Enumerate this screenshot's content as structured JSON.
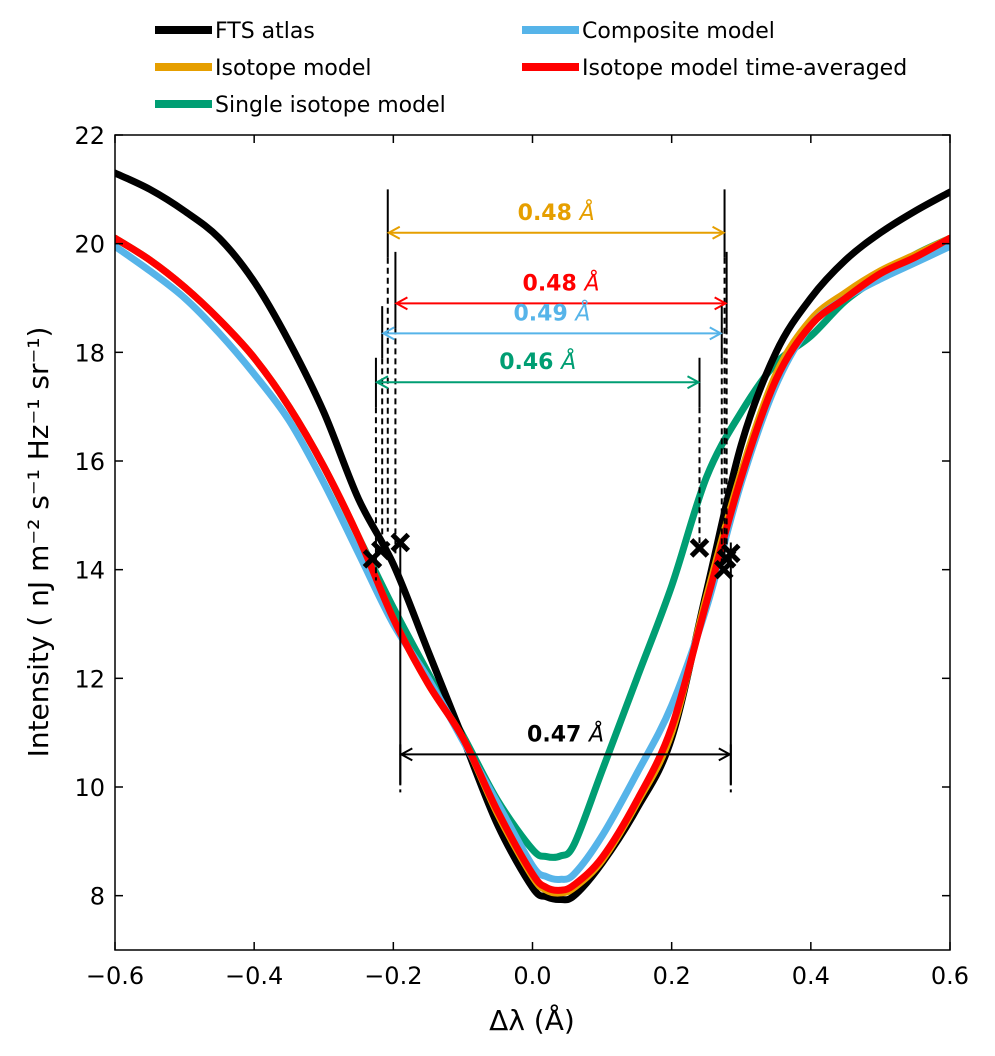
{
  "chart_data": {
    "type": "line",
    "xlabel": "Δλ (Å)",
    "ylabel": "Intensity ( nJ m⁻² s⁻¹ Hz⁻¹ sr⁻¹)",
    "xlim": [
      -0.6,
      0.6
    ],
    "ylim": [
      7,
      22
    ],
    "xticks": [
      -0.6,
      -0.4,
      -0.2,
      0.0,
      0.2,
      0.4,
      0.6
    ],
    "xtick_labels": [
      "−0.6",
      "−0.4",
      "−0.2",
      "0.0",
      "0.2",
      "0.4",
      "0.6"
    ],
    "yticks": [
      8,
      10,
      12,
      14,
      16,
      18,
      20,
      22
    ],
    "ytick_labels": [
      "8",
      "10",
      "12",
      "14",
      "16",
      "18",
      "20",
      "22"
    ],
    "legend": {
      "placement": "top",
      "entries": [
        {
          "label": "FTS atlas",
          "color": "#000000"
        },
        {
          "label": "Composite model",
          "color": "#56b4e9"
        },
        {
          "label": "Isotope model",
          "color": "#e69f00"
        },
        {
          "label": "Isotope model time-averaged",
          "color": "#ff0000"
        },
        {
          "label": "Single isotope model",
          "color": "#009e73"
        }
      ]
    },
    "series": [
      {
        "name": "FTS atlas",
        "color": "#000000",
        "x": [
          -0.6,
          -0.55,
          -0.5,
          -0.45,
          -0.4,
          -0.35,
          -0.3,
          -0.25,
          -0.2,
          -0.15,
          -0.1,
          -0.05,
          0.0,
          0.02,
          0.04,
          0.06,
          0.1,
          0.15,
          0.2,
          0.25,
          0.3,
          0.35,
          0.4,
          0.45,
          0.5,
          0.55,
          0.6
        ],
        "y": [
          21.3,
          21.0,
          20.6,
          20.1,
          19.3,
          18.2,
          16.9,
          15.3,
          14.1,
          12.5,
          10.9,
          9.3,
          8.15,
          7.98,
          7.93,
          8.0,
          8.6,
          9.6,
          10.9,
          13.6,
          16.3,
          18.0,
          19.0,
          19.7,
          20.2,
          20.6,
          20.95
        ]
      },
      {
        "name": "Isotope model",
        "color": "#e69f00",
        "x": [
          -0.6,
          -0.55,
          -0.5,
          -0.45,
          -0.4,
          -0.35,
          -0.3,
          -0.25,
          -0.2,
          -0.15,
          -0.1,
          -0.05,
          0.0,
          0.02,
          0.04,
          0.06,
          0.1,
          0.15,
          0.2,
          0.25,
          0.3,
          0.35,
          0.4,
          0.45,
          0.5,
          0.55,
          0.6
        ],
        "y": [
          20.1,
          19.7,
          19.2,
          18.6,
          17.9,
          17.0,
          15.9,
          14.6,
          13.1,
          11.9,
          10.9,
          9.5,
          8.35,
          8.1,
          8.05,
          8.15,
          8.65,
          9.7,
          11.0,
          13.5,
          15.8,
          17.6,
          18.6,
          19.1,
          19.5,
          19.8,
          20.1
        ]
      },
      {
        "name": "Isotope model time-averaged",
        "color": "#ff0000",
        "x": [
          -0.6,
          -0.55,
          -0.5,
          -0.45,
          -0.4,
          -0.35,
          -0.3,
          -0.25,
          -0.2,
          -0.15,
          -0.1,
          -0.05,
          0.0,
          0.02,
          0.04,
          0.06,
          0.1,
          0.15,
          0.2,
          0.25,
          0.3,
          0.35,
          0.4,
          0.45,
          0.5,
          0.55,
          0.6
        ],
        "y": [
          20.1,
          19.7,
          19.2,
          18.6,
          17.9,
          17.0,
          15.9,
          14.6,
          13.1,
          11.9,
          10.9,
          9.55,
          8.4,
          8.15,
          8.1,
          8.2,
          8.7,
          9.75,
          11.1,
          13.4,
          15.7,
          17.5,
          18.5,
          19.0,
          19.45,
          19.75,
          20.1
        ]
      },
      {
        "name": "Composite model",
        "color": "#56b4e9",
        "x": [
          -0.6,
          -0.55,
          -0.5,
          -0.45,
          -0.4,
          -0.35,
          -0.3,
          -0.25,
          -0.2,
          -0.15,
          -0.1,
          -0.05,
          0.0,
          0.02,
          0.04,
          0.06,
          0.1,
          0.15,
          0.2,
          0.25,
          0.3,
          0.35,
          0.4,
          0.45,
          0.5,
          0.55,
          0.6
        ],
        "y": [
          19.95,
          19.5,
          19.0,
          18.35,
          17.6,
          16.75,
          15.6,
          14.3,
          13.0,
          12.0,
          10.85,
          9.7,
          8.55,
          8.35,
          8.3,
          8.4,
          9.1,
          10.25,
          11.5,
          13.3,
          15.6,
          17.4,
          18.5,
          19.0,
          19.35,
          19.65,
          19.95
        ]
      },
      {
        "name": "Single isotope model",
        "color": "#009e73",
        "x": [
          -0.6,
          -0.55,
          -0.5,
          -0.45,
          -0.4,
          -0.35,
          -0.3,
          -0.25,
          -0.2,
          -0.15,
          -0.1,
          -0.05,
          0.0,
          0.02,
          0.04,
          0.06,
          0.1,
          0.15,
          0.2,
          0.25,
          0.3,
          0.35,
          0.4,
          0.45,
          0.5,
          0.55,
          0.6
        ],
        "y": [
          20.1,
          19.7,
          19.2,
          18.6,
          17.9,
          17.0,
          15.9,
          14.6,
          13.3,
          12.1,
          10.95,
          9.75,
          8.85,
          8.72,
          8.73,
          8.95,
          10.3,
          12.0,
          13.7,
          15.7,
          16.9,
          17.8,
          18.3,
          18.95,
          19.4,
          19.8,
          20.1
        ]
      }
    ],
    "width_annotations": [
      {
        "label": "0.48 Å",
        "value_text": "0.48",
        "unit": "Å",
        "color": "#e69f00",
        "x_left": -0.208,
        "x_right": 0.276,
        "arrow_y": 20.2,
        "left_top": 21.0,
        "right_top": 21.0,
        "left_bottom": 14.7,
        "right_bottom": 14.0
      },
      {
        "label": "0.48 Å",
        "value_text": "0.48",
        "unit": "Å",
        "color": "#ff0000",
        "x_left": -0.197,
        "x_right": 0.279,
        "arrow_y": 18.9,
        "left_top": 19.85,
        "right_top": 19.85,
        "left_bottom": 14.3,
        "right_bottom": 14.4
      },
      {
        "label": "0.49 Å",
        "value_text": "0.49",
        "unit": "Å",
        "color": "#56b4e9",
        "x_left": -0.216,
        "x_right": 0.272,
        "arrow_y": 18.35,
        "left_top": 18.85,
        "right_top": 18.85,
        "left_bottom": 14.4,
        "right_bottom": 14.1
      },
      {
        "label": "0.46 Å",
        "value_text": "0.46",
        "unit": "Å",
        "color": "#009e73",
        "x_left": -0.225,
        "x_right": 0.24,
        "arrow_y": 17.45,
        "left_top": 17.9,
        "right_top": 17.9,
        "left_bottom": 13.8,
        "right_bottom": 14.4
      },
      {
        "label": "0.47 Å",
        "value_text": "0.47",
        "unit": "Å",
        "color": "#000000",
        "x_left": -0.19,
        "x_right": 0.285,
        "arrow_y": 10.6,
        "left_top": 14.5,
        "right_top": 14.5,
        "left_bottom": 9.9,
        "right_bottom": 9.9
      }
    ],
    "cross_markers": [
      {
        "x": -0.19,
        "y": 14.5
      },
      {
        "x": -0.23,
        "y": 14.2
      },
      {
        "x": -0.218,
        "y": 14.35
      },
      {
        "x": 0.24,
        "y": 14.4
      },
      {
        "x": 0.285,
        "y": 14.3
      },
      {
        "x": 0.275,
        "y": 14.0
      },
      {
        "x": 0.279,
        "y": 14.2
      }
    ]
  }
}
